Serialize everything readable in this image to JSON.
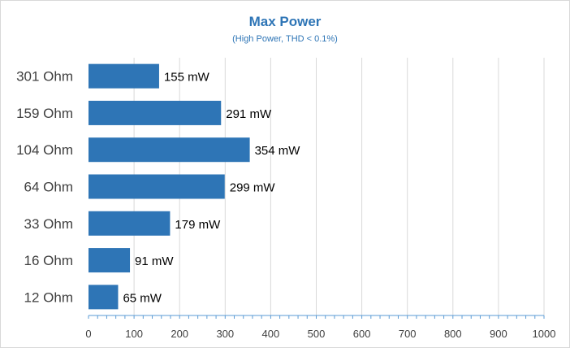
{
  "chart_data": {
    "type": "bar",
    "orientation": "horizontal",
    "title": "Max Power",
    "subtitle": "(High Power, THD < 0.1%)",
    "categories": [
      "301 Ohm",
      "159 Ohm",
      "104 Ohm",
      "64 Ohm",
      "33 Ohm",
      "16 Ohm",
      "12 Ohm"
    ],
    "values": [
      155,
      291,
      354,
      299,
      179,
      91,
      65
    ],
    "data_labels": [
      "155 mW",
      "291 mW",
      "354 mW",
      "299 mW",
      "179 mW",
      "91 mW",
      "65 mW"
    ],
    "xlim": [
      0,
      1000
    ],
    "x_ticks": [
      "0",
      "100",
      "200",
      "300",
      "400",
      "500",
      "600",
      "700",
      "800",
      "900",
      "1000"
    ],
    "xlabel": "",
    "ylabel": "",
    "grid": "vertical",
    "bar_color": "#2e75b6",
    "grid_color": "#d9d9d9",
    "axis_color": "#5b9bd5",
    "label_color": "#000000"
  }
}
